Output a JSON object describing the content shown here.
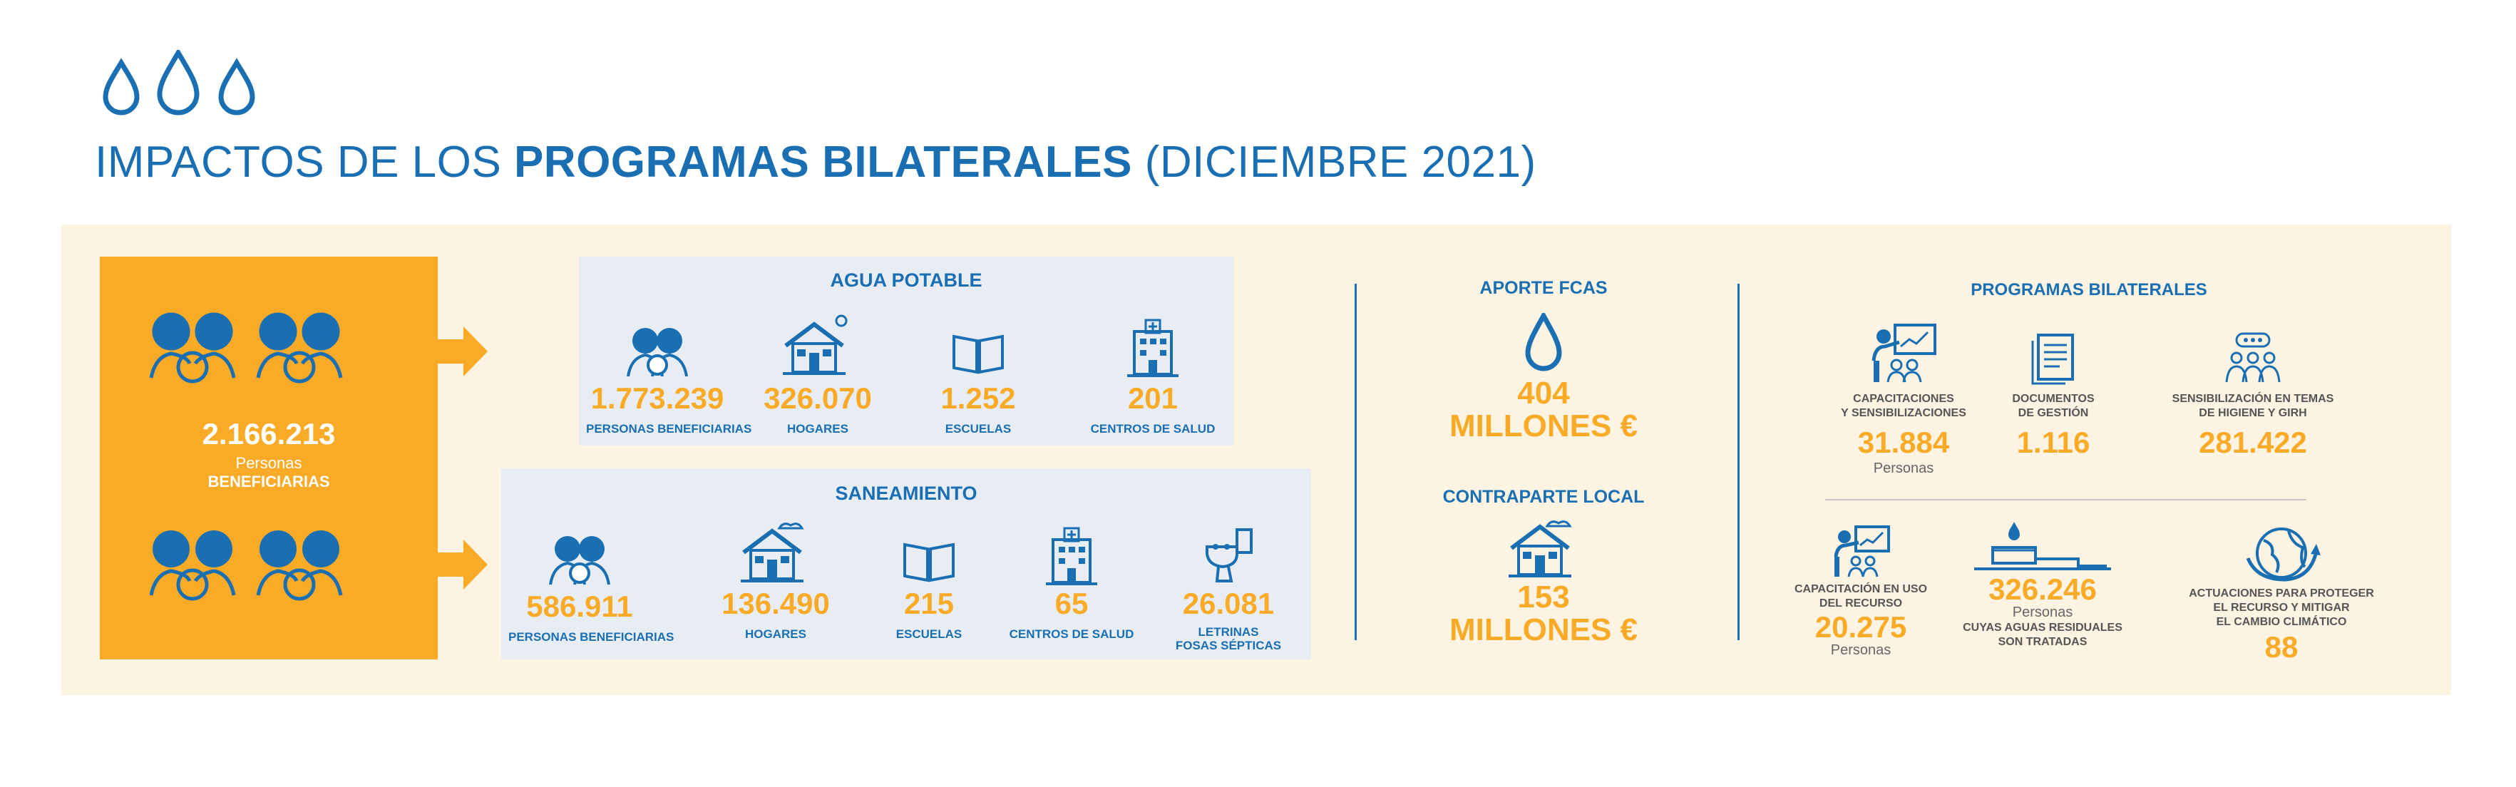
{
  "title": {
    "part1": "IMPACTOS DE LOS ",
    "part2": "PROGRAMAS BILATERALES",
    "part3": " (DICIEMBRE 2021)"
  },
  "colors": {
    "blue": "#1a6fb3",
    "orange": "#f9aa27",
    "panel": "#fdf3e2",
    "box": "#e8edf4"
  },
  "beneficiarios": {
    "value": "2.166.213",
    "line1": "Personas",
    "line2": "BENEFICIARIAS"
  },
  "agua": {
    "title": "AGUA POTABLE",
    "items": [
      {
        "value": "1.773.239",
        "label": "PERSONAS BENEFICIARIAS",
        "icon": "people-icon"
      },
      {
        "value": "326.070",
        "label": "HOGARES",
        "icon": "house-icon"
      },
      {
        "value": "1.252",
        "label": "ESCUELAS",
        "icon": "book-icon"
      },
      {
        "value": "201",
        "label": "CENTROS DE SALUD",
        "icon": "hospital-icon"
      }
    ]
  },
  "saneamiento": {
    "title": "SANEAMIENTO",
    "items": [
      {
        "value": "586.911",
        "label": "PERSONAS BENEFICIARIAS",
        "icon": "people-icon"
      },
      {
        "value": "136.490",
        "label": "HOGARES",
        "icon": "house-icon"
      },
      {
        "value": "215",
        "label": "ESCUELAS",
        "icon": "book-icon"
      },
      {
        "value": "65",
        "label": "CENTROS DE SALUD",
        "icon": "hospital-icon"
      },
      {
        "value": "26.081",
        "label": "LETRINAS",
        "label2": "FOSAS SÉPTICAS",
        "icon": "toilet-icon"
      }
    ]
  },
  "aporte": {
    "title": "APORTE FCAS",
    "value": "404",
    "unit": "MILLONES €"
  },
  "contraparte": {
    "title": "CONTRAPARTE LOCAL",
    "value": "153",
    "unit": "MILLONES €"
  },
  "programas": {
    "title": "PROGRAMAS BILATERALES",
    "row1": [
      {
        "label1": "CAPACITACIONES",
        "label2": "Y SENSIBILIZACIONES",
        "value": "31.884",
        "sub": "Personas"
      },
      {
        "label1": "DOCUMENTOS",
        "label2": "DE GESTIÓN",
        "value": "1.116"
      },
      {
        "label1": "SENSIBILIZACIÓN EN TEMAS",
        "label2": "DE HIGIENE Y GIRH",
        "value": "281.422"
      }
    ],
    "row2": [
      {
        "label1": "CAPACITACIÓN EN USO",
        "label2": "DEL RECURSO",
        "value": "20.275",
        "sub": "Personas"
      },
      {
        "value": "326.246",
        "sub": "Personas",
        "label1": "CUYAS AGUAS RESIDUALES",
        "label2": "SON TRATADAS"
      },
      {
        "label1": "ACTUACIONES PARA PROTEGER",
        "label2": "EL RECURSO Y MITIGAR",
        "label3": "EL CAMBIO CLIMÁTICO",
        "value": "88"
      }
    ]
  }
}
